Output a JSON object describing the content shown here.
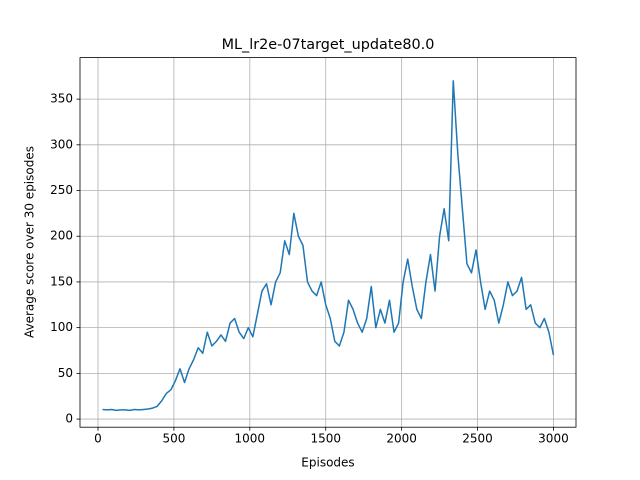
{
  "chart_data": {
    "type": "line",
    "title": "ML_lr2e-07target_update80.0",
    "x_label": "Episodes",
    "y_label": "Average score over 30 episodes",
    "x": [
      30,
      60,
      90,
      120,
      150,
      180,
      210,
      240,
      270,
      300,
      330,
      360,
      390,
      420,
      450,
      480,
      510,
      540,
      570,
      600,
      630,
      660,
      690,
      720,
      750,
      780,
      810,
      840,
      870,
      900,
      930,
      960,
      990,
      1020,
      1050,
      1080,
      1110,
      1140,
      1170,
      1200,
      1230,
      1260,
      1290,
      1320,
      1350,
      1380,
      1410,
      1440,
      1470,
      1500,
      1530,
      1560,
      1590,
      1620,
      1650,
      1680,
      1710,
      1740,
      1770,
      1800,
      1830,
      1860,
      1890,
      1920,
      1950,
      1980,
      2010,
      2040,
      2070,
      2100,
      2130,
      2160,
      2190,
      2220,
      2250,
      2280,
      2310,
      2340,
      2370,
      2400,
      2430,
      2460,
      2490,
      2520,
      2550,
      2580,
      2610,
      2640,
      2670,
      2700,
      2730,
      2760,
      2790,
      2820,
      2850,
      2880,
      2910,
      2940,
      2970,
      3000
    ],
    "values": [
      10.5,
      10,
      10.5,
      9.5,
      10,
      10,
      9.5,
      10.5,
      10,
      10.5,
      11,
      12,
      14,
      20,
      28,
      32,
      42,
      55,
      40,
      55,
      65,
      78,
      72,
      95,
      80,
      85,
      92,
      85,
      105,
      110,
      95,
      88,
      100,
      90,
      115,
      140,
      148,
      125,
      150,
      160,
      195,
      180,
      225,
      200,
      190,
      150,
      140,
      135,
      150,
      125,
      110,
      85,
      80,
      95,
      130,
      120,
      105,
      95,
      110,
      145,
      100,
      120,
      105,
      130,
      95,
      105,
      150,
      175,
      145,
      120,
      110,
      150,
      180,
      140,
      200,
      230,
      195,
      370,
      290,
      230,
      170,
      160,
      185,
      150,
      120,
      140,
      130,
      105,
      125,
      150,
      135,
      140,
      155,
      120,
      125,
      105,
      100,
      110,
      95,
      70
    ],
    "color": "#1f77b4",
    "xlim": [
      -118.5,
      3148.5
    ],
    "xticks": [
      0,
      500,
      1000,
      1500,
      2000,
      2500,
      3000
    ],
    "ylim": [
      -8.9,
      395.4
    ],
    "yticks": [
      0,
      50,
      100,
      150,
      200,
      250,
      300,
      350
    ],
    "grid": true
  }
}
